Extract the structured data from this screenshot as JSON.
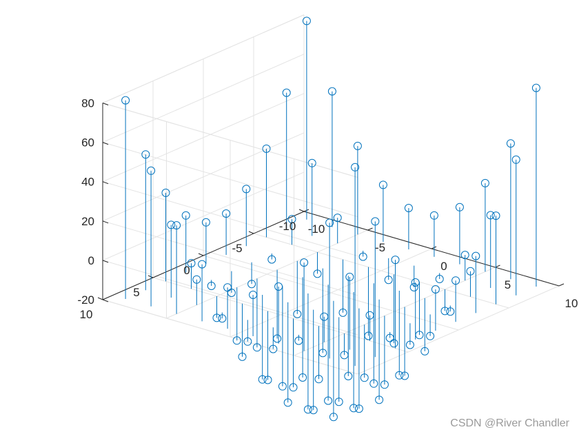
{
  "chart_data": {
    "type": "stem3",
    "title": "",
    "xlabel": "",
    "ylabel": "",
    "zlabel": "",
    "xlim": [
      -10,
      10
    ],
    "ylim": [
      -10,
      10
    ],
    "zlim": [
      -20,
      80
    ],
    "x_ticks": [
      -10,
      -5,
      0,
      5,
      10
    ],
    "y_ticks": [
      -10,
      -5,
      0,
      5,
      10
    ],
    "z_ticks": [
      -20,
      0,
      20,
      40,
      60,
      80
    ],
    "grid": true,
    "box": true,
    "color": "#0072BD",
    "marker": "open-circle",
    "baseline_z": -20,
    "grid_x": [
      -9,
      -7,
      -5,
      -3,
      -1,
      1,
      3,
      5,
      7,
      9
    ],
    "grid_y": [
      -9,
      -7,
      -5,
      -3,
      -1,
      1,
      3,
      5,
      7,
      9
    ],
    "z_formula": "z = x^2 + y^2 - 81"
  },
  "watermark": "CSDN @River Chandler"
}
